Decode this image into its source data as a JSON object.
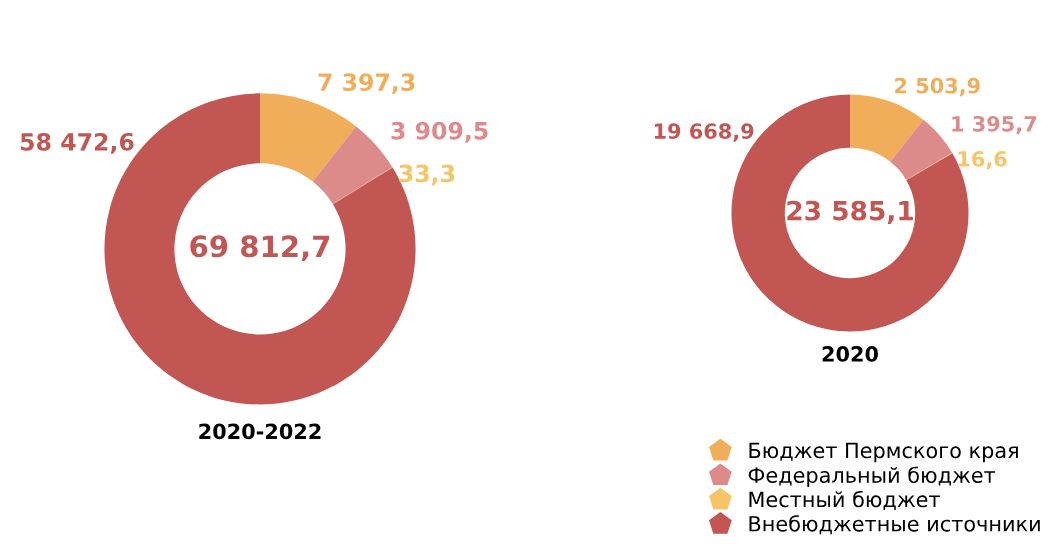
{
  "chart_data": [
    {
      "type": "donut",
      "title": "2020-2022",
      "categories": [
        "Бюджет Пермского края",
        "Федеральный бюджет",
        "Местный бюджет",
        "Внебюджетные источники"
      ],
      "values": [
        7397.3,
        3909.5,
        33.3,
        58472.6
      ],
      "value_labels": [
        "7 397,3",
        "3 909,5",
        "33,3",
        "58 472,6"
      ],
      "colors": [
        "#f0ae5a",
        "#dd8a8a",
        "#f7c468",
        "#c25653"
      ],
      "annotations": [
        "69 812,7"
      ],
      "legend": "bottom right"
    },
    {
      "type": "donut",
      "title": "2020",
      "categories": [
        null,
        null,
        null,
        null
      ],
      "values": [
        2503.9,
        1395.7,
        16.6,
        19668.9
      ],
      "value_labels": [
        "2 503,9",
        "1 395,7",
        "16,6",
        "19 668,9"
      ],
      "colors": [
        "#f0ae5a",
        "#dd8a8a",
        "#f7c468",
        "#c25653"
      ],
      "annotations": [
        "23 585,1"
      ]
    }
  ]
}
